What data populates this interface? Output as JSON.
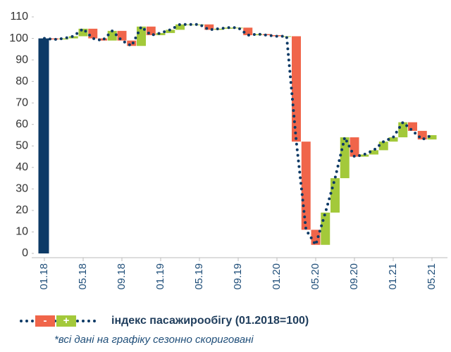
{
  "chart_data": {
    "type": "waterfall",
    "categories": [
      "01.18",
      null,
      null,
      null,
      "05.18",
      null,
      null,
      null,
      "09.18",
      null,
      null,
      null,
      "01.19",
      null,
      null,
      null,
      "05.19",
      null,
      null,
      null,
      "09.19",
      null,
      null,
      null,
      "01.20",
      null,
      null,
      null,
      "05.20",
      null,
      null,
      null,
      "09.20",
      null,
      null,
      null,
      "01.21",
      null,
      null,
      null,
      "05.21"
    ],
    "series": [
      {
        "name": "індекс пасажирообігу (01.2018=100)",
        "color": "#0d3a66",
        "values": [
          100,
          99.5,
          100,
          101,
          104.5,
          100,
          99,
          103.5,
          99,
          96.5,
          105.5,
          101.5,
          102.5,
          104,
          106.5,
          106.5,
          106.5,
          104,
          104.5,
          105,
          105,
          101.5,
          102,
          101.5,
          101,
          101,
          52,
          11,
          4,
          19,
          35,
          54,
          45,
          46,
          48,
          52,
          54,
          61,
          57,
          53,
          55
        ]
      }
    ],
    "increase_color": "#a3c93a",
    "decrease_color": "#f0654a",
    "legend_minus": "-",
    "legend_plus": "+",
    "note": "*всі дані на графіку сезонно скориговані",
    "ylim": [
      0,
      110
    ],
    "yticks": [
      0,
      10,
      20,
      30,
      40,
      50,
      60,
      70,
      80,
      90,
      100,
      110
    ]
  }
}
